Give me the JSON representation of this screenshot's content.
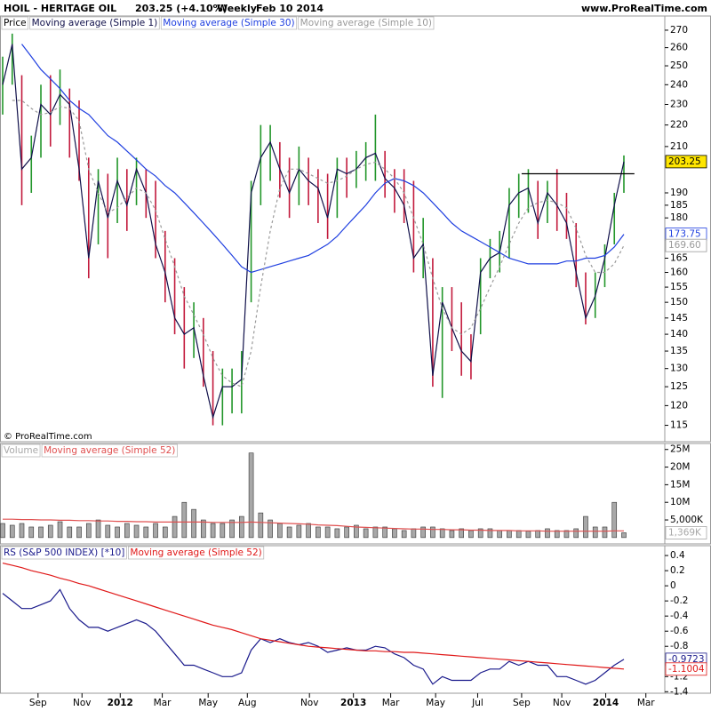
{
  "chart_data": [
    {
      "type": "ohlc",
      "title": "HOIL - HERITAGE OIL",
      "subtitle": "203.25 (+4.10%)",
      "period": "Weekly",
      "date": "Feb 10 2014",
      "source": "www.ProRealTime.com",
      "copyright": "© ProRealTime.com",
      "log_scale": true,
      "ylim": [
        111,
        278.4
      ],
      "yticks": [
        270,
        260,
        250,
        240,
        230,
        220,
        210,
        190,
        185,
        180,
        165,
        160,
        155,
        150,
        145,
        140,
        135,
        130,
        125,
        120,
        115
      ],
      "hline": {
        "value": 198,
        "from": 54.3,
        "to": 66.1
      },
      "series": [
        {
          "name": "Price",
          "type": "hl",
          "color": "#000000",
          "up_color": "#22962a",
          "down_color": "#c21a3c",
          "color_by": 1,
          "high": [
            255,
            268,
            245,
            215,
            240,
            245,
            248,
            238,
            232,
            205,
            200,
            198,
            205,
            200,
            205,
            200,
            195,
            175,
            165,
            155,
            150,
            145,
            135,
            130,
            130,
            135,
            195,
            220,
            220,
            212,
            205,
            210,
            205,
            200,
            198,
            205,
            205,
            208,
            212,
            225,
            208,
            200,
            200,
            195,
            180,
            165,
            155,
            155,
            150,
            140,
            165,
            172,
            175,
            192,
            198,
            200,
            195,
            195,
            200,
            190,
            178,
            160,
            160,
            170,
            190,
            206
          ],
          "low": [
            225,
            240,
            185,
            190,
            205,
            210,
            220,
            205,
            195,
            158,
            170,
            165,
            178,
            175,
            185,
            180,
            165,
            150,
            140,
            130,
            133,
            125,
            115,
            115,
            118,
            118,
            150,
            185,
            195,
            188,
            180,
            185,
            185,
            178,
            172,
            180,
            188,
            192,
            195,
            195,
            188,
            182,
            178,
            160,
            158,
            125,
            122,
            135,
            128,
            127,
            140,
            158,
            160,
            165,
            180,
            182,
            172,
            178,
            175,
            172,
            155,
            143,
            145,
            155,
            170,
            190
          ]
        },
        {
          "name": "Moving average (Simple 1)",
          "type": "line",
          "color": "#10104a",
          "last_tag": true,
          "tag_fill": "#ffe600",
          "values": [
            240,
            262,
            200,
            205,
            230,
            225,
            235,
            230,
            200,
            165,
            195,
            180,
            195,
            185,
            200,
            190,
            170,
            160,
            145,
            140,
            142,
            128,
            117,
            125,
            125,
            127,
            190,
            205,
            212,
            200,
            190,
            200,
            195,
            192,
            180,
            200,
            198,
            200,
            205,
            207,
            196,
            192,
            185,
            165,
            170,
            128,
            150,
            142,
            135,
            132,
            160,
            165,
            167,
            185,
            190,
            192,
            178,
            190,
            185,
            178,
            160,
            145,
            152,
            165,
            185,
            203.25
          ]
        },
        {
          "name": "Moving average (Simple 30)",
          "type": "line",
          "color": "#1f3fe0",
          "last_tag": true,
          "values": [
            null,
            null,
            262,
            255,
            248,
            243,
            238,
            232,
            228,
            225,
            220,
            215,
            212,
            208,
            204,
            200,
            197,
            193,
            190,
            186,
            182,
            178,
            174,
            170,
            166,
            162,
            160,
            161,
            162,
            163,
            164,
            165,
            166,
            168,
            170,
            173,
            177,
            181,
            185,
            190,
            194,
            196,
            195,
            193,
            190,
            186,
            182,
            178,
            175,
            173,
            171,
            169,
            167,
            165,
            164,
            163,
            163,
            163,
            163,
            164,
            164,
            165,
            165,
            166,
            169,
            173.75
          ]
        },
        {
          "name": "Moving average (Simple 10)",
          "type": "line",
          "color": "#9a9a9a",
          "dash": true,
          "last_tag": true,
          "values": [
            null,
            232,
            232,
            228,
            225,
            226,
            229,
            228,
            222,
            200,
            190,
            182,
            184,
            188,
            192,
            190,
            183,
            172,
            162,
            152,
            146,
            140,
            133,
            128,
            126,
            125,
            135,
            155,
            175,
            192,
            200,
            200,
            198,
            196,
            194,
            195,
            197,
            200,
            202,
            203,
            200,
            196,
            190,
            180,
            170,
            158,
            148,
            142,
            140,
            142,
            148,
            155,
            162,
            170,
            178,
            184,
            186,
            187,
            186,
            184,
            176,
            166,
            160,
            160,
            163,
            169.6
          ],
          "value_labels": [
            null,
            null,
            null,
            null,
            null,
            null,
            null,
            null,
            null,
            null,
            null,
            null,
            null,
            null,
            null,
            null,
            null,
            null,
            null,
            null,
            null,
            null,
            null,
            null,
            null,
            null,
            null,
            null,
            null,
            null,
            null,
            null,
            null,
            null,
            null,
            null,
            null,
            null,
            null,
            null,
            null,
            null,
            null,
            null,
            null,
            null,
            null,
            null,
            null,
            null,
            null,
            null,
            null,
            null,
            null,
            null,
            null,
            null,
            null,
            null,
            null,
            null,
            null,
            null,
            null,
            "169.60"
          ]
        }
      ]
    },
    {
      "type": "bar",
      "ylim": [
        -1800000,
        26700000
      ],
      "yticks": [
        {
          "value": 25000000,
          "label": "25M"
        },
        {
          "value": 20000000,
          "label": "20M"
        },
        {
          "value": 15000000,
          "label": "15M"
        },
        {
          "value": 10000000,
          "label": "10M"
        },
        {
          "value": 5000000,
          "label": "5,000K"
        }
      ],
      "series": [
        {
          "name": "Volume",
          "type": "bar",
          "color": "#a8a8a8",
          "last_tag": true,
          "values": [
            4000000,
            3500000,
            4000000,
            3000000,
            3000000,
            3500000,
            4500000,
            3000000,
            3000000,
            4000000,
            5000000,
            3500000,
            3000000,
            4000000,
            3500000,
            3000000,
            4000000,
            3000000,
            6000000,
            10000000,
            8000000,
            5000000,
            4000000,
            4000000,
            5000000,
            6000000,
            24000000,
            7000000,
            5000000,
            4000000,
            3000000,
            3500000,
            4000000,
            3000000,
            3000000,
            2500000,
            3000000,
            3500000,
            2500000,
            3000000,
            3000000,
            2500000,
            2000000,
            2500000,
            3000000,
            3000000,
            2500000,
            2000000,
            2500000,
            2000000,
            2500000,
            2500000,
            2000000,
            2000000,
            2000000,
            1800000,
            2000000,
            2500000,
            2000000,
            2000000,
            2500000,
            6000000,
            3000000,
            3000000,
            10000000,
            1369000
          ],
          "value_labels": [
            null,
            null,
            null,
            null,
            null,
            null,
            null,
            null,
            null,
            null,
            null,
            null,
            null,
            null,
            null,
            null,
            null,
            null,
            null,
            null,
            null,
            null,
            null,
            null,
            null,
            null,
            null,
            null,
            null,
            null,
            null,
            null,
            null,
            null,
            null,
            null,
            null,
            null,
            null,
            null,
            null,
            null,
            null,
            null,
            null,
            null,
            null,
            null,
            null,
            null,
            null,
            null,
            null,
            null,
            null,
            null,
            null,
            null,
            null,
            null,
            null,
            null,
            null,
            null,
            null,
            "1,369K"
          ]
        },
        {
          "name": "Moving average (Simple 52)",
          "type": "line",
          "color": "#e05050",
          "values": [
            5200000,
            5200000,
            5100000,
            5100000,
            5000000,
            5000000,
            4900000,
            4900000,
            4800000,
            4800000,
            4700000,
            4700000,
            4600000,
            4600000,
            4500000,
            4500000,
            4400000,
            4400000,
            4400000,
            4400000,
            4400000,
            4400000,
            4300000,
            4300000,
            4300000,
            4300000,
            4400000,
            4300000,
            4200000,
            4100000,
            4000000,
            3900000,
            3800000,
            3600000,
            3500000,
            3400000,
            3200000,
            3000000,
            2900000,
            2800000,
            2700000,
            2600000,
            2500000,
            2400000,
            2400000,
            2300000,
            2300000,
            2200000,
            2200000,
            2100000,
            2100000,
            2000000,
            2000000,
            2000000,
            1900000,
            1900000,
            1900000,
            1800000,
            1800000,
            1800000,
            1800000,
            1800000,
            1800000,
            1800000,
            1900000,
            1900000
          ]
        }
      ]
    },
    {
      "type": "line",
      "ylim": [
        -1.42,
        0.53
      ],
      "yticks": [
        0.4,
        0.2,
        0,
        -0.2,
        -0.4,
        -0.6,
        -0.8,
        -1.2,
        -1.4
      ],
      "xlim": [
        0,
        69
      ],
      "xticks": [
        {
          "value": 3.7,
          "label": "Sep"
        },
        {
          "value": 8.3,
          "label": "Nov"
        },
        {
          "value": 12.3,
          "label": "2012"
        },
        {
          "value": 16.7,
          "label": "Mar"
        },
        {
          "value": 21.5,
          "label": "May"
        },
        {
          "value": 25.6,
          "label": "Aug"
        },
        {
          "value": 32.1,
          "label": "Nov"
        },
        {
          "value": 36.7,
          "label": "2013"
        },
        {
          "value": 40.6,
          "label": "Mar"
        },
        {
          "value": 45.3,
          "label": "May"
        },
        {
          "value": 49.7,
          "label": "Jul"
        },
        {
          "value": 54.3,
          "label": "Sep"
        },
        {
          "value": 58.5,
          "label": "Nov"
        },
        {
          "value": 63.1,
          "label": "2014"
        },
        {
          "value": 67.3,
          "label": "Mar"
        }
      ],
      "series": [
        {
          "name": "RS (S&P 500 INDEX) [*10]",
          "type": "line",
          "color": "#1a1a8c",
          "last_tag": true,
          "values": [
            -0.1,
            -0.2,
            -0.3,
            -0.3,
            -0.25,
            -0.2,
            -0.05,
            -0.3,
            -0.45,
            -0.55,
            -0.55,
            -0.6,
            -0.55,
            -0.5,
            -0.45,
            -0.5,
            -0.6,
            -0.75,
            -0.9,
            -1.05,
            -1.05,
            -1.1,
            -1.15,
            -1.2,
            -1.2,
            -1.15,
            -0.85,
            -0.7,
            -0.75,
            -0.7,
            -0.75,
            -0.78,
            -0.75,
            -0.8,
            -0.88,
            -0.85,
            -0.82,
            -0.85,
            -0.85,
            -0.8,
            -0.82,
            -0.9,
            -0.95,
            -1.05,
            -1.1,
            -1.3,
            -1.2,
            -1.25,
            -1.25,
            -1.25,
            -1.15,
            -1.1,
            -1.1,
            -1.0,
            -1.05,
            -1.0,
            -1.05,
            -1.05,
            -1.2,
            -1.2,
            -1.25,
            -1.3,
            -1.25,
            -1.15,
            -1.05,
            -0.9723
          ]
        },
        {
          "name": "Moving average (Simple 52)",
          "type": "line",
          "color": "#e01818",
          "last_tag": true,
          "values": [
            0.3,
            0.27,
            0.24,
            0.2,
            0.17,
            0.14,
            0.1,
            0.07,
            0.03,
            0,
            -0.04,
            -0.08,
            -0.12,
            -0.16,
            -0.2,
            -0.24,
            -0.28,
            -0.32,
            -0.36,
            -0.4,
            -0.44,
            -0.48,
            -0.52,
            -0.55,
            -0.58,
            -0.62,
            -0.66,
            -0.7,
            -0.72,
            -0.74,
            -0.76,
            -0.78,
            -0.8,
            -0.81,
            -0.82,
            -0.83,
            -0.84,
            -0.85,
            -0.86,
            -0.86,
            -0.87,
            -0.87,
            -0.88,
            -0.88,
            -0.89,
            -0.9,
            -0.91,
            -0.92,
            -0.93,
            -0.94,
            -0.95,
            -0.96,
            -0.97,
            -0.98,
            -0.99,
            -1.0,
            -1.01,
            -1.02,
            -1.03,
            -1.04,
            -1.05,
            -1.06,
            -1.07,
            -1.08,
            -1.09,
            -1.1004
          ]
        }
      ]
    }
  ]
}
